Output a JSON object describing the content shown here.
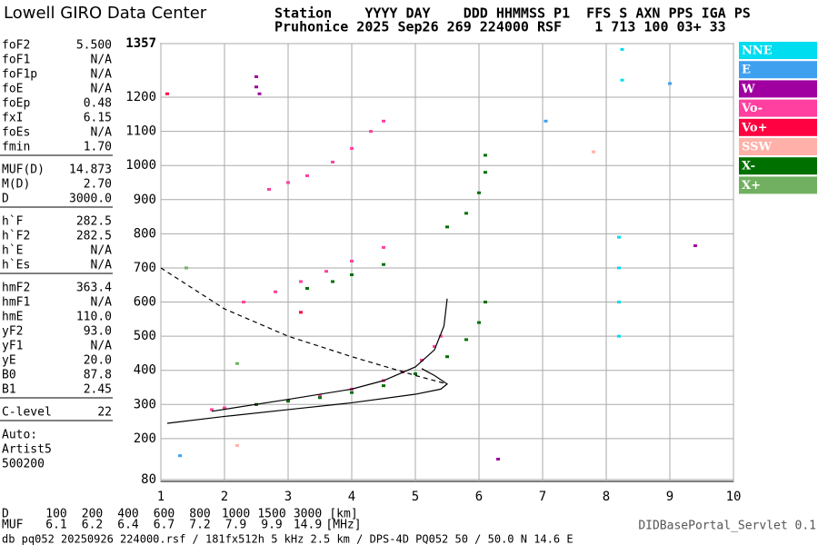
{
  "logo": "Lowell GIRO Data Center",
  "header": [
    "Station    YYYY DAY    DDD HHMMSS P1  FFS S AXN PPS IGA PS",
    "Pruhonice 2025 Sep26 269 224000 RSF    1 713 100 03+ 33"
  ],
  "panel": [
    [
      [
        "foF2",
        "5.500"
      ],
      [
        "foF1",
        "N/A"
      ],
      [
        "foF1p",
        "N/A"
      ],
      [
        "foE",
        "N/A"
      ],
      [
        "foEp",
        "0.48"
      ],
      [
        "fxI",
        "6.15"
      ],
      [
        "foEs",
        "N/A"
      ],
      [
        "fmin",
        "1.70"
      ]
    ],
    [
      [
        "MUF(D)",
        "14.873"
      ],
      [
        "M(D)",
        "2.70"
      ],
      [
        "D",
        "3000.0"
      ]
    ],
    [
      [
        "h`F",
        "282.5"
      ],
      [
        "h`F2",
        "282.5"
      ],
      [
        "h`E",
        "N/A"
      ],
      [
        "h`Es",
        "N/A"
      ]
    ],
    [
      [
        "hmF2",
        "363.4"
      ],
      [
        "hmF1",
        "N/A"
      ],
      [
        "hmE",
        "110.0"
      ],
      [
        "yF2",
        "93.0"
      ],
      [
        "yF1",
        "N/A"
      ],
      [
        "yE",
        "20.0"
      ],
      [
        "B0",
        "87.8"
      ],
      [
        "B1",
        "2.45"
      ]
    ],
    [
      [
        "C-level",
        "22"
      ]
    ]
  ],
  "auto": [
    "Auto:",
    "Artist5",
    "500200"
  ],
  "bottom": {
    "d_row": [
      "D",
      "100",
      "200",
      "400",
      "600",
      "800",
      "1000",
      "1500",
      "3000",
      "[km]"
    ],
    "muf_row": [
      "MUF",
      "6.1",
      "6.2",
      "6.4",
      "6.7",
      "7.2",
      "7.9",
      "9.9",
      "14.9",
      "[MHz]"
    ]
  },
  "footer": "db pq052 20250926 224000.rsf / 181fx512h 5 kHz 2.5 km / DPS-4D PQ052 50 / 50.0 N 14.6 E",
  "servlet": "DIDBasePortal_Servlet 0.1",
  "chart_data": {
    "type": "scatter",
    "xlim": [
      1,
      10
    ],
    "xticks": [
      1,
      2,
      3,
      4,
      5,
      6,
      7,
      8,
      9,
      10
    ],
    "ylim": [
      80,
      1357
    ],
    "yticks": [
      80,
      200,
      300,
      400,
      500,
      600,
      700,
      800,
      900,
      1000,
      1100,
      1200,
      1357
    ],
    "grid": true,
    "series": [
      {
        "name": "NNE",
        "color": "#00dcf0",
        "x": [
          8.2,
          8.2,
          8.2,
          8.2,
          8.25,
          8.25
        ],
        "y": [
          500,
          600,
          700,
          790,
          1250,
          1340
        ]
      },
      {
        "name": "E",
        "color": "#40a0f0",
        "x": [
          1.3,
          7.05,
          9.0
        ],
        "y": [
          150,
          1130,
          1240
        ]
      },
      {
        "name": "W",
        "color": "#a000a0",
        "x": [
          2.5,
          2.5,
          2.55,
          9.4,
          6.3
        ],
        "y": [
          1260,
          1230,
          1210,
          765,
          140
        ]
      },
      {
        "name": "Vo-",
        "color": "#ff40a0",
        "x": [
          1.8,
          2,
          2.5,
          3,
          3.5,
          4,
          4.5,
          4.8,
          5.1,
          5.3,
          5.4,
          2.3,
          2.8,
          3.2,
          3.6,
          4,
          4.5,
          2.7,
          3,
          3.3,
          3.7,
          4,
          4.3,
          4.5
        ],
        "y": [
          285,
          290,
          300,
          310,
          325,
          345,
          370,
          395,
          430,
          470,
          500,
          600,
          630,
          660,
          690,
          720,
          760,
          930,
          950,
          970,
          1010,
          1050,
          1100,
          1130
        ]
      },
      {
        "name": "Vo+",
        "color": "#ff0040",
        "x": [
          3.2,
          1.1
        ],
        "y": [
          570,
          1210
        ]
      },
      {
        "name": "SSW",
        "color": "#ffb0a8",
        "x": [
          2.2,
          7.8
        ],
        "y": [
          180,
          1040
        ]
      },
      {
        "name": "X-",
        "color": "#007000",
        "x": [
          2.5,
          3,
          3.5,
          4,
          4.5,
          5,
          5.5,
          5.8,
          6,
          6.1,
          3.3,
          3.7,
          4,
          4.5,
          5.5,
          5.8,
          6,
          6.1,
          6.1
        ],
        "y": [
          300,
          310,
          320,
          335,
          355,
          390,
          440,
          490,
          540,
          600,
          640,
          660,
          680,
          710,
          820,
          860,
          920,
          980,
          1030
        ]
      },
      {
        "name": "X+",
        "color": "#70b060",
        "x": [
          1.4,
          2.2
        ],
        "y": [
          700,
          420
        ]
      }
    ],
    "lines": [
      {
        "style": "solid",
        "x": [
          1.8,
          3,
          4,
          4.5,
          5,
          5.3,
          5.45,
          5.5
        ],
        "y": [
          280,
          315,
          345,
          370,
          410,
          460,
          530,
          610
        ]
      },
      {
        "style": "solid",
        "x": [
          1.1,
          2,
          3,
          4,
          5,
          5.4,
          5.5,
          5.3,
          5.1
        ],
        "y": [
          245,
          265,
          285,
          305,
          330,
          345,
          360,
          385,
          405
        ]
      },
      {
        "style": "dashed",
        "x": [
          1,
          2,
          3,
          4,
          5,
          5.5
        ],
        "y": [
          700,
          580,
          500,
          440,
          385,
          360
        ]
      }
    ]
  }
}
